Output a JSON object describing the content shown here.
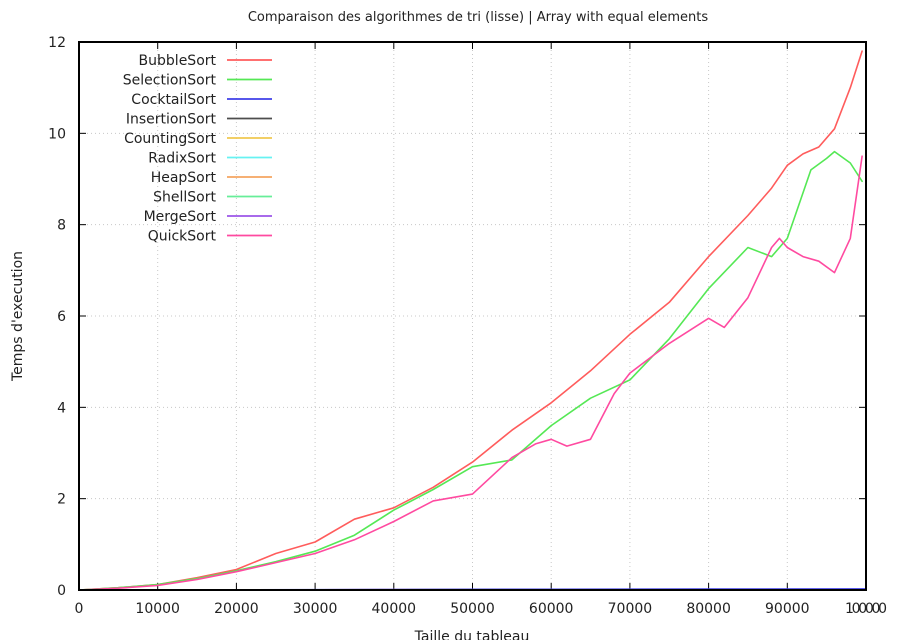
{
  "chart_data": {
    "type": "line",
    "title": "Comparaison des algorithmes de tri (lisse) | Array with equal elements",
    "xlabel": "Taille du tableau",
    "ylabel": "Temps d'execution",
    "xlim": [
      0,
      100000
    ],
    "ylim": [
      0,
      12
    ],
    "x_ticks": [
      0,
      10000,
      20000,
      30000,
      40000,
      50000,
      60000,
      70000,
      80000,
      90000,
      100000
    ],
    "x_tick_labels": [
      "0",
      "10000",
      "20000",
      "30000",
      "40000",
      "50000",
      "60000",
      "70000",
      "80000",
      "90000",
      "100000"
    ],
    "y_ticks": [
      0,
      2,
      4,
      6,
      8,
      10,
      12
    ],
    "y_tick_labels": [
      "0",
      "2",
      "4",
      "6",
      "8",
      "10",
      "12"
    ],
    "grid": true,
    "legend_position": "top-left",
    "series": [
      {
        "name": "BubbleSort",
        "color": "#ff5c5c",
        "x": [
          0,
          5000,
          10000,
          15000,
          20000,
          25000,
          30000,
          35000,
          40000,
          45000,
          50000,
          55000,
          60000,
          65000,
          70000,
          75000,
          80000,
          85000,
          88000,
          90000,
          92000,
          94000,
          96000,
          98000,
          99500
        ],
        "y": [
          0,
          0.05,
          0.12,
          0.27,
          0.45,
          0.8,
          1.05,
          1.55,
          1.8,
          2.25,
          2.8,
          3.5,
          4.1,
          4.8,
          5.6,
          6.3,
          7.3,
          8.2,
          8.8,
          9.3,
          9.55,
          9.7,
          10.1,
          11.0,
          11.8
        ]
      },
      {
        "name": "SelectionSort",
        "color": "#55e855",
        "x": [
          0,
          5000,
          10000,
          15000,
          20000,
          25000,
          30000,
          35000,
          40000,
          45000,
          50000,
          55000,
          60000,
          65000,
          70000,
          75000,
          80000,
          85000,
          88000,
          90000,
          91000,
          93000,
          95000,
          96000,
          98000,
          99500
        ],
        "y": [
          0,
          0.05,
          0.12,
          0.25,
          0.42,
          0.62,
          0.85,
          1.2,
          1.75,
          2.2,
          2.7,
          2.85,
          3.6,
          4.2,
          4.6,
          5.5,
          6.6,
          7.5,
          7.3,
          7.7,
          8.2,
          9.2,
          9.45,
          9.6,
          9.35,
          8.95
        ]
      },
      {
        "name": "CocktailSort",
        "color": "#3f3fe8",
        "x": [
          0,
          20000,
          40000,
          60000,
          80000,
          100000
        ],
        "y": [
          0,
          0.005,
          0.01,
          0.015,
          0.02,
          0.025
        ]
      },
      {
        "name": "InsertionSort",
        "color": "#4d4d4d",
        "x": [
          0,
          20000,
          40000,
          60000,
          80000,
          100000
        ],
        "y": [
          0,
          0.002,
          0.004,
          0.006,
          0.008,
          0.01
        ]
      },
      {
        "name": "CountingSort",
        "color": "#f0c850",
        "x": [
          0,
          20000,
          40000,
          60000,
          80000,
          100000
        ],
        "y": [
          0,
          0.002,
          0.004,
          0.006,
          0.008,
          0.01
        ]
      },
      {
        "name": "RadixSort",
        "color": "#66f2f2",
        "x": [
          0,
          20000,
          40000,
          60000,
          80000,
          100000
        ],
        "y": [
          0,
          0.002,
          0.004,
          0.006,
          0.008,
          0.01
        ]
      },
      {
        "name": "HeapSort",
        "color": "#f4a460",
        "x": [
          0,
          20000,
          40000,
          60000,
          80000,
          100000
        ],
        "y": [
          0,
          0.003,
          0.006,
          0.009,
          0.012,
          0.015
        ]
      },
      {
        "name": "ShellSort",
        "color": "#66ee99",
        "x": [
          0,
          20000,
          40000,
          60000,
          80000,
          100000
        ],
        "y": [
          0,
          0.002,
          0.004,
          0.006,
          0.008,
          0.01
        ]
      },
      {
        "name": "MergeSort",
        "color": "#9b55e8",
        "x": [
          0,
          20000,
          40000,
          60000,
          80000,
          100000
        ],
        "y": [
          0,
          0.003,
          0.006,
          0.009,
          0.012,
          0.015
        ]
      },
      {
        "name": "QuickSort",
        "color": "#ff4aa0",
        "x": [
          0,
          5000,
          10000,
          15000,
          20000,
          25000,
          30000,
          35000,
          40000,
          45000,
          50000,
          55000,
          58000,
          60000,
          62000,
          65000,
          68000,
          70000,
          75000,
          80000,
          82000,
          85000,
          88000,
          89000,
          90000,
          92000,
          94000,
          96000,
          98000,
          99500
        ],
        "y": [
          0,
          0.04,
          0.1,
          0.23,
          0.4,
          0.6,
          0.8,
          1.1,
          1.5,
          1.95,
          2.1,
          2.9,
          3.2,
          3.3,
          3.15,
          3.3,
          4.3,
          4.75,
          5.4,
          5.95,
          5.75,
          6.4,
          7.5,
          7.7,
          7.5,
          7.3,
          7.2,
          6.95,
          7.7,
          9.5
        ]
      }
    ]
  }
}
